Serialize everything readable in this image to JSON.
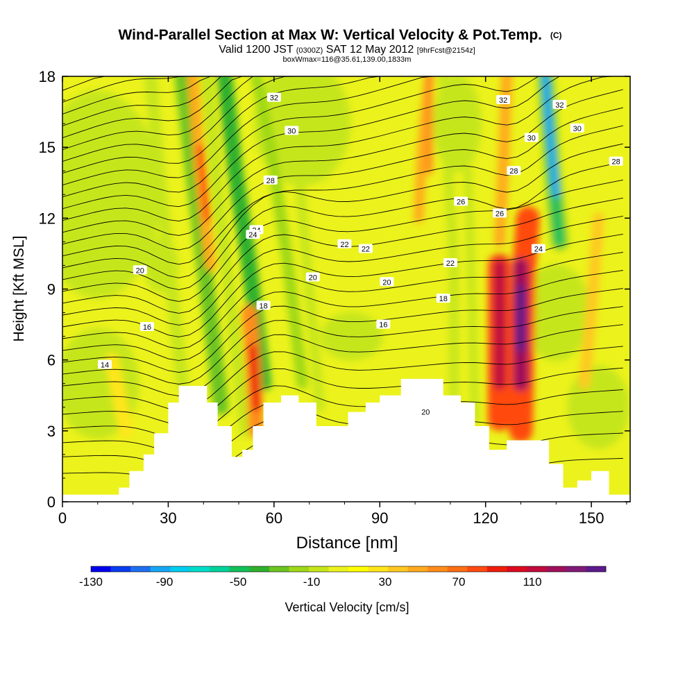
{
  "chart_data": {
    "type": "heatmap",
    "title": "Wind-Parallel Section at Max W: Vertical Velocity & Pot.Temp.",
    "title_suffix": "(C)",
    "subtitle_main": "Valid 1200 JST",
    "subtitle_utc": "(0300Z)",
    "subtitle_date": "SAT 12 May 2012",
    "subtitle_fcst": "[9hrFcst@2154z]",
    "subtitle2": "boxWmax=116@35.61,139.00,1833m",
    "xlabel": "Distance [nm]",
    "ylabel": "Height [Kft MSL]",
    "xlim": [
      0,
      161
    ],
    "ylim": [
      0,
      18
    ],
    "xticks": [
      0,
      30,
      60,
      90,
      120,
      150
    ],
    "yticks": [
      0,
      3,
      6,
      9,
      12,
      15,
      18
    ],
    "grid": false,
    "colorbar": {
      "label": "Vertical Velocity [cm/s]",
      "range": [
        -130,
        150
      ],
      "step": 10,
      "tick_labels": [
        "-130",
        "-90",
        "-50",
        "-10",
        "30",
        "70",
        "110"
      ],
      "tick_values": [
        -130,
        -90,
        -50,
        -10,
        30,
        70,
        110
      ],
      "colors": [
        "#0000ee",
        "#0a3cf0",
        "#1e6ef0",
        "#16a6f4",
        "#00ccee",
        "#00dcc8",
        "#00d29a",
        "#12c05a",
        "#2eb02e",
        "#6cc420",
        "#9ed818",
        "#c6e61a",
        "#ecf21c",
        "#ffff00",
        "#ffe61a",
        "#ffc820",
        "#ffaa1e",
        "#ff8c1a",
        "#ff6e14",
        "#ff4a10",
        "#ee1e0a",
        "#dc0a1e",
        "#c00a3c",
        "#a0105a",
        "#801a78",
        "#5c1a8c"
      ]
    },
    "theta_contours": {
      "unit": "C",
      "labels": [
        "14",
        "16",
        "18",
        "20",
        "22",
        "24",
        "26",
        "28",
        "30",
        "32"
      ]
    },
    "updraft_cores_cm_s": [
      {
        "x_nm": 40,
        "y_kft": 14,
        "w": 60
      },
      {
        "x_nm": 55,
        "y_kft": 5,
        "w": 70
      },
      {
        "x_nm": 104,
        "y_kft": 16.5,
        "w": 50
      },
      {
        "x_nm": 124,
        "y_kft": 8.5,
        "w": 100
      },
      {
        "x_nm": 130,
        "y_kft": 8,
        "w": 116
      }
    ],
    "downdraft_cores_cm_s": [
      {
        "x_nm": 35,
        "y_kft": 7,
        "w": -40
      },
      {
        "x_nm": 50,
        "y_kft": 14,
        "w": -45
      },
      {
        "x_nm": 137,
        "y_kft": 15,
        "w": -110
      }
    ],
    "terrain_kft": [
      [
        0,
        0.3
      ],
      [
        10,
        0.3
      ],
      [
        16,
        0.6
      ],
      [
        19,
        1.3
      ],
      [
        23,
        2.0
      ],
      [
        26,
        2.9
      ],
      [
        30,
        4.2
      ],
      [
        33,
        4.9
      ],
      [
        39,
        4.9
      ],
      [
        41,
        4.2
      ],
      [
        44,
        3.2
      ],
      [
        48,
        1.9
      ],
      [
        51,
        2.2
      ],
      [
        54,
        3.2
      ],
      [
        57,
        4.2
      ],
      [
        62,
        4.5
      ],
      [
        67,
        4.2
      ],
      [
        72,
        3.2
      ],
      [
        77,
        3.2
      ],
      [
        81,
        3.8
      ],
      [
        86,
        4.2
      ],
      [
        90,
        4.5
      ],
      [
        96,
        5.2
      ],
      [
        104,
        5.2
      ],
      [
        108,
        4.5
      ],
      [
        113,
        4.2
      ],
      [
        117,
        3.2
      ],
      [
        121,
        2.2
      ],
      [
        126,
        2.6
      ],
      [
        134,
        2.6
      ],
      [
        138,
        1.6
      ],
      [
        142,
        0.6
      ],
      [
        146,
        0.9
      ],
      [
        150,
        1.3
      ],
      [
        155,
        0.3
      ],
      [
        161,
        0.3
      ]
    ]
  }
}
